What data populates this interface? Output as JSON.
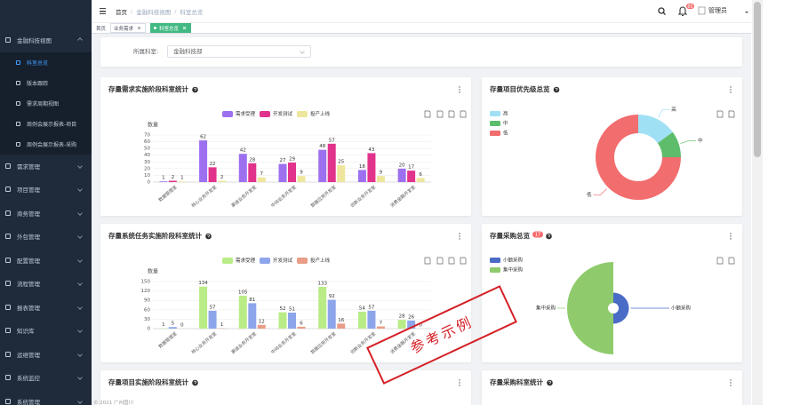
{
  "sidebar": {
    "menu": [
      {
        "label": "金融科技视图",
        "children": [
          "科室总览",
          "版本跟踪",
          "需求周期视图",
          "周例会展示报表-项目",
          "周例会展示报表-采购"
        ]
      },
      {
        "label": "需求管理"
      },
      {
        "label": "项目管理"
      },
      {
        "label": "商务管理"
      },
      {
        "label": "外包管理"
      },
      {
        "label": "配置管理"
      },
      {
        "label": "流程管理"
      },
      {
        "label": "报表管理"
      },
      {
        "label": "知识库"
      },
      {
        "label": "运维管理"
      },
      {
        "label": "系统监控"
      },
      {
        "label": "系统管理"
      }
    ]
  },
  "header": {
    "breadcrumb": [
      "首页",
      "金融科技视图",
      "科室总览"
    ],
    "breadcrumb_separator": "/",
    "notice_count": 85,
    "user": "管理员"
  },
  "tabs": [
    "首页",
    "业务需求",
    "科室总览"
  ],
  "filter": {
    "label": "所属科室:",
    "value": "金融科技部"
  },
  "chart_data": [
    {
      "type": "bar",
      "title": "存量需求实施阶段科室统计",
      "y_label": "数量",
      "categories": [
        "数据管理室",
        "核心业务开发室",
        "渠道业务开发室",
        "中间业务开发室",
        "数据应用开发室",
        "创新业务开发室",
        "消费金融开发室"
      ],
      "series": [
        {
          "name": "需求受理",
          "color": "#9d70f0",
          "values": [
            1,
            62,
            42,
            27,
            48,
            18,
            20
          ]
        },
        {
          "name": "开发测试",
          "color": "#e2338c",
          "values": [
            2,
            22,
            28,
            29,
            57,
            43,
            17
          ]
        },
        {
          "name": "投产上线",
          "color": "#eee69c",
          "values": [
            1,
            2,
            7,
            9,
            25,
            9,
            6
          ]
        }
      ],
      "ylim": [
        0,
        70
      ],
      "yticks": [
        0,
        10,
        20,
        30,
        40,
        50,
        60,
        70
      ],
      "grid": true
    },
    {
      "type": "pie",
      "donut": true,
      "title": "存量项目优先级总览",
      "categories": [
        "高",
        "中",
        "低"
      ],
      "values": [
        15,
        10,
        75
      ],
      "colors": [
        "#a0e0f5",
        "#5dbd6b",
        "#f26d6e"
      ]
    },
    {
      "type": "bar",
      "title": "存量系统任务实施阶段科室统计",
      "y_label": "数量",
      "categories": [
        "数据管理室",
        "核心业务开发室",
        "渠道业务开发室",
        "中间业务开发室",
        "数据应用开发室",
        "创新业务开发室",
        "消费金融开发室"
      ],
      "series": [
        {
          "name": "需求受理",
          "color": "#b9ec87",
          "values": [
            1,
            134,
            105,
            52,
            133,
            54,
            28
          ]
        },
        {
          "name": "开发测试",
          "color": "#8da5ea",
          "values": [
            5,
            57,
            81,
            51,
            92,
            57,
            26
          ]
        },
        {
          "name": "投产上线",
          "color": "#e99c86",
          "values": [
            0,
            1,
            12,
            6,
            16,
            7,
            0
          ]
        }
      ],
      "ylim": [
        0,
        150
      ],
      "yticks": [
        0,
        30,
        60,
        90,
        120,
        150
      ],
      "grid": true
    },
    {
      "type": "rose",
      "title": "存量采购总览",
      "badge": 17,
      "categories": [
        "小额采购",
        "集中采购"
      ],
      "values": [
        1,
        16
      ],
      "colors": [
        "#4a6bc6",
        "#8fcb6c"
      ]
    }
  ],
  "more_cards": [
    "存量项目实施阶段科室统计",
    "存量采购科室统计"
  ],
  "watermark": "参考示例",
  "footer": "© 2021 广州国川"
}
